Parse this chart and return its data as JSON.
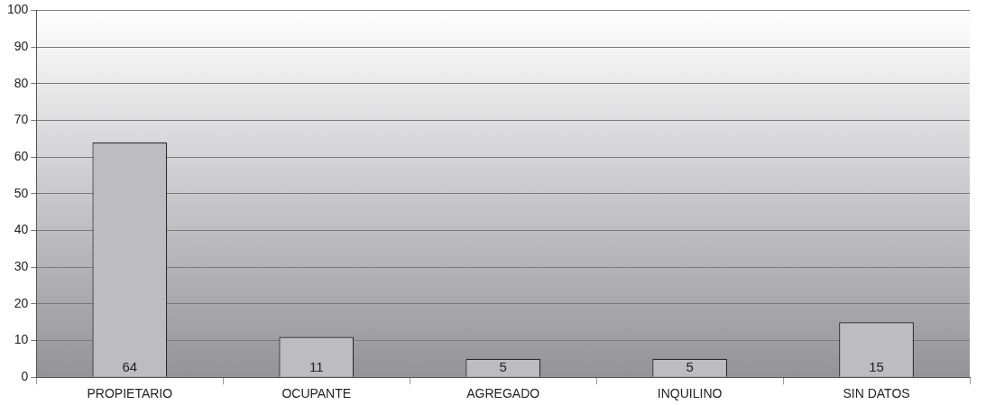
{
  "chart_data": {
    "type": "bar",
    "categories": [
      "PROPIETARIO",
      "OCUPANTE",
      "AGREGADO",
      "INQUILINO",
      "SIN DATOS"
    ],
    "values": [
      64,
      11,
      5,
      5,
      15
    ],
    "color": "#bdbdc1",
    "ylim": [
      0,
      100
    ],
    "yticks": [
      0,
      10,
      20,
      30,
      40,
      50,
      60,
      70,
      80,
      90,
      100
    ],
    "grid": "y",
    "data_labels": true,
    "legend": false
  }
}
